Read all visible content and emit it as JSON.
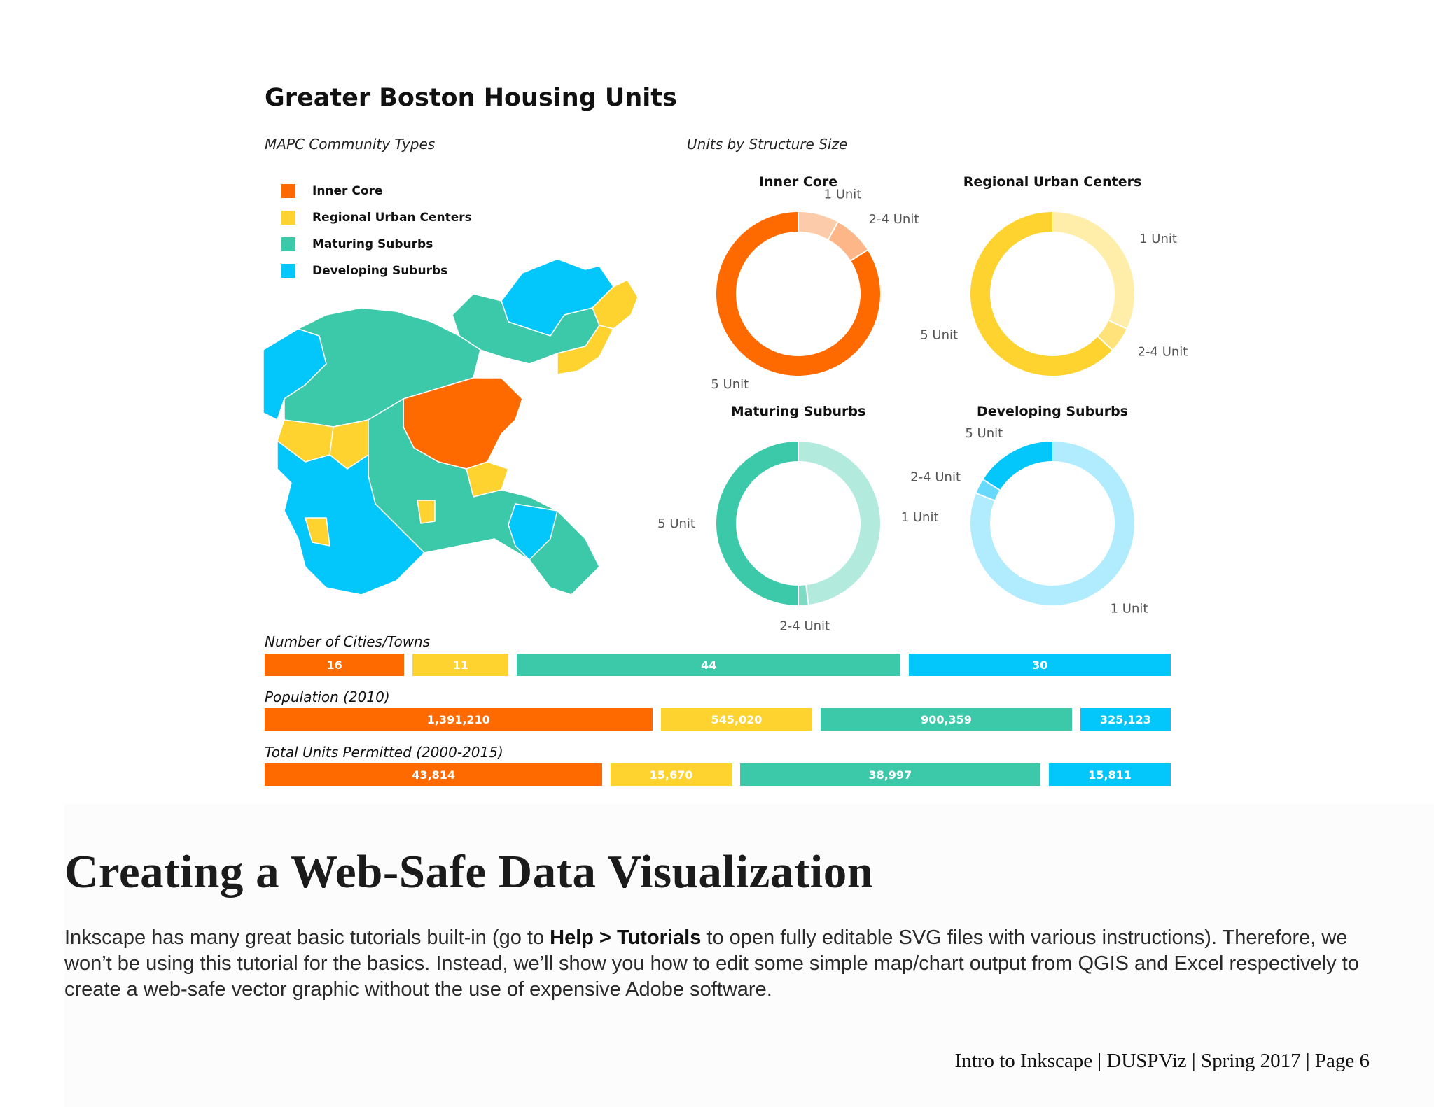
{
  "figure": {
    "title": "Greater Boston Housing Units",
    "map_subtitle": "MAPC Community Types",
    "donut_subtitle": "Units by Structure Size"
  },
  "colors": {
    "inner_core": "#ff6a00",
    "regional_urban": "#fed22f",
    "maturing": "#3cc9a9",
    "developing": "#03c6fb"
  },
  "legend": [
    {
      "label": "Inner Core",
      "color": "#ff6a00"
    },
    {
      "label": "Regional Urban Centers",
      "color": "#fed22f"
    },
    {
      "label": "Maturing Suburbs",
      "color": "#3cc9a9"
    },
    {
      "label": "Developing Suburbs",
      "color": "#03c6fb"
    }
  ],
  "chart_data": [
    {
      "type": "pie",
      "title": "Inner Core",
      "categories": [
        "1 Unit",
        "2-4 Unit",
        "5 Unit"
      ],
      "values": [
        8,
        8,
        84
      ],
      "colors": [
        "#fcccaa",
        "#fdb688",
        "#ff6a00"
      ]
    },
    {
      "type": "pie",
      "title": "Regional Urban Centers",
      "categories": [
        "1 Unit",
        "2-4 Unit",
        "5 Unit"
      ],
      "values": [
        32,
        5,
        63
      ],
      "colors": [
        "#ffeeaa",
        "#ffe27a",
        "#fed22f"
      ]
    },
    {
      "type": "pie",
      "title": "Maturing Suburbs",
      "categories": [
        "1 Unit",
        "2-4 Unit",
        "5 Unit"
      ],
      "values": [
        48,
        2,
        50
      ],
      "colors": [
        "#b2eadd",
        "#7fdac4",
        "#3cc9a9"
      ]
    },
    {
      "type": "pie",
      "title": "Developing Suburbs",
      "categories": [
        "1 Unit",
        "2-4 Unit",
        "5 Unit"
      ],
      "values": [
        81,
        3,
        16
      ],
      "colors": [
        "#b0ecfd",
        "#66d9fc",
        "#03c6fb"
      ]
    },
    {
      "type": "bar",
      "title": "Number of Cities/Towns",
      "categories": [
        "Inner Core",
        "Regional Urban Centers",
        "Maturing Suburbs",
        "Developing Suburbs"
      ],
      "values": [
        16,
        11,
        44,
        30
      ],
      "labels": [
        "16",
        "11",
        "44",
        "30"
      ]
    },
    {
      "type": "bar",
      "title": "Population (2010)",
      "categories": [
        "Inner Core",
        "Regional Urban Centers",
        "Maturing Suburbs",
        "Developing Suburbs"
      ],
      "values": [
        1391210,
        545020,
        900359,
        325123
      ],
      "labels": [
        "1,391,210",
        "545,020",
        "900,359",
        "325,123"
      ]
    },
    {
      "type": "bar",
      "title": "Total Units Permitted (2000-2015)",
      "categories": [
        "Inner Core",
        "Regional Urban Centers",
        "Maturing Suburbs",
        "Developing Suburbs"
      ],
      "values": [
        43814,
        15670,
        38997,
        15811
      ],
      "labels": [
        "43,814",
        "15,670",
        "38,997",
        "15,811"
      ]
    }
  ],
  "article": {
    "heading": "Creating a Web-Safe Data Visualization",
    "para_part1": "Inkscape has many great basic tutorials built-in (go to ",
    "para_bold": "Help > Tutorials",
    "para_part2": " to open fully editable SVG files with various instructions). Therefore, we won’t be using this tutorial for the basics. Instead, we’ll show you how to edit some simple map/chart output from QGIS and Excel respectively to create a web-safe vector graphic without the use of expensive Adobe software."
  },
  "footer": {
    "text": "Intro to Inkscape | DUSPViz | Spring 2017 | Page 6"
  }
}
